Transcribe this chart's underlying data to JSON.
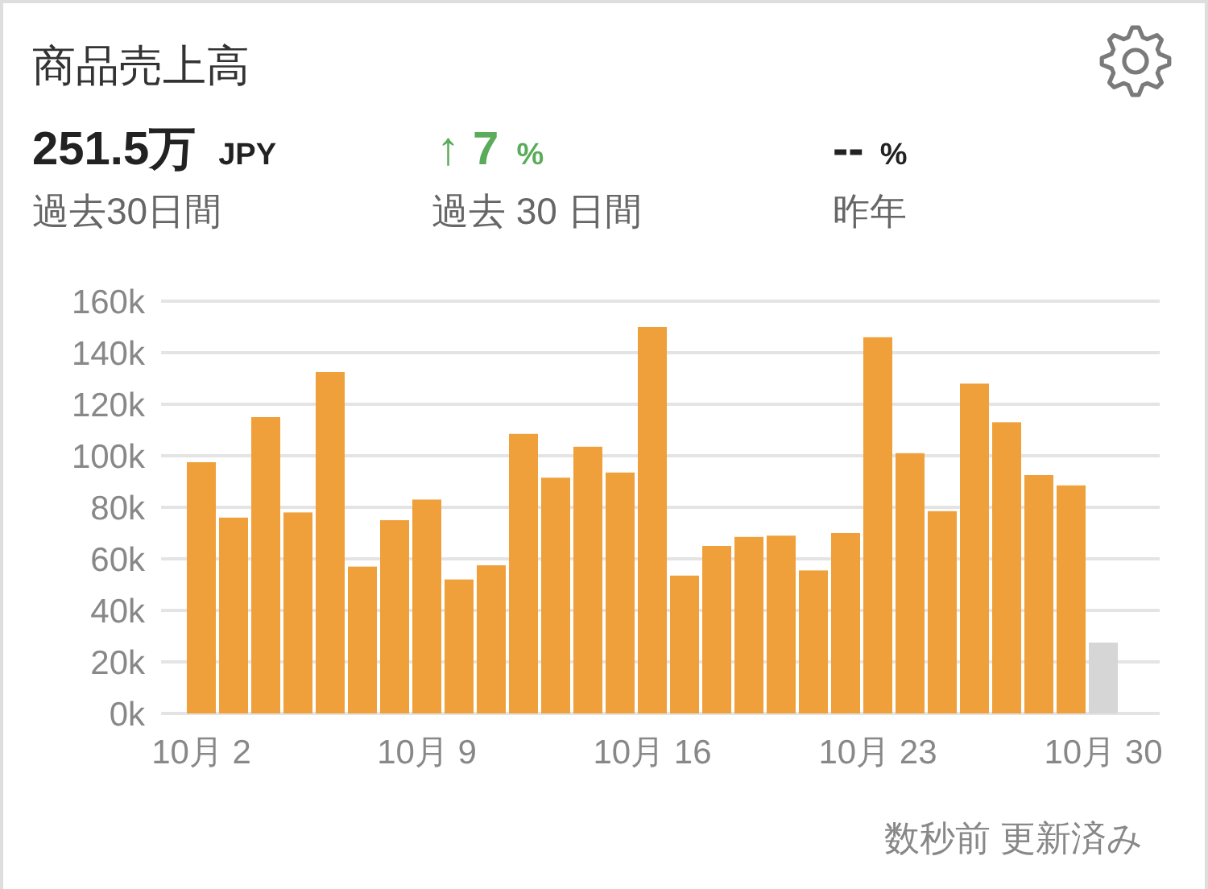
{
  "chart_data": {
    "type": "bar",
    "title": "商品売上高",
    "annotations": [
      "251.5万",
      "JPY",
      "過去30日間",
      "↑ 7",
      "%",
      "過去 30 日間",
      "--",
      "%",
      "昨年",
      "数秒前 更新済み"
    ],
    "categories": [
      "10月 2",
      null,
      null,
      null,
      null,
      null,
      null,
      "10月 9",
      null,
      null,
      null,
      null,
      null,
      null,
      "10月 16",
      null,
      null,
      null,
      null,
      null,
      null,
      "10月 23",
      null,
      null,
      null,
      null,
      null,
      null,
      "10月 30"
    ],
    "values": [
      97500,
      76000,
      115000,
      78000,
      132500,
      57000,
      75000,
      83000,
      52000,
      57500,
      108500,
      91500,
      103500,
      93500,
      150000,
      53500,
      65000,
      68500,
      69000,
      55500,
      70000,
      146000,
      101000,
      78500,
      128000,
      113000,
      92500,
      88500,
      27500
    ],
    "colors": [
      "#efa03a",
      "#efa03a",
      "#efa03a",
      "#efa03a",
      "#efa03a",
      "#efa03a",
      "#efa03a",
      "#efa03a",
      "#efa03a",
      "#efa03a",
      "#efa03a",
      "#efa03a",
      "#efa03a",
      "#efa03a",
      "#efa03a",
      "#efa03a",
      "#efa03a",
      "#efa03a",
      "#efa03a",
      "#efa03a",
      "#efa03a",
      "#efa03a",
      "#efa03a",
      "#efa03a",
      "#efa03a",
      "#efa03a",
      "#efa03a",
      "#efa03a",
      "#d6d6d6"
    ],
    "ylim": [
      0,
      160000
    ],
    "yticks": [
      {
        "value": 0,
        "label": "0k"
      },
      {
        "value": 20000,
        "label": "20k"
      },
      {
        "value": 40000,
        "label": "40k"
      },
      {
        "value": 60000,
        "label": "60k"
      },
      {
        "value": 80000,
        "label": "80k"
      },
      {
        "value": 100000,
        "label": "100k"
      },
      {
        "value": 120000,
        "label": "120k"
      },
      {
        "value": 140000,
        "label": "140k"
      },
      {
        "value": 160000,
        "label": "160k"
      }
    ],
    "grid": "y"
  }
}
